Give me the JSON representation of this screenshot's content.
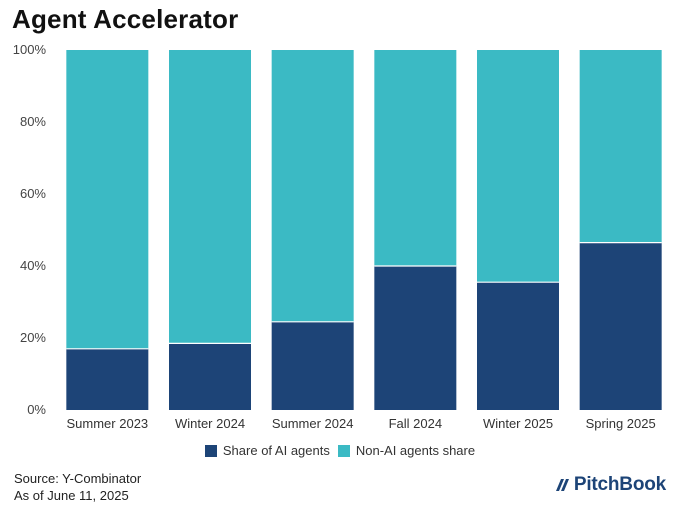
{
  "title": "Agent Accelerator",
  "colors": {
    "ai": "#1d4477",
    "non_ai": "#3bbac4",
    "gridline": "#cccccc"
  },
  "chart_data": {
    "type": "bar",
    "stacked": true,
    "categories": [
      "Summer 2023",
      "Winter 2024",
      "Summer 2024",
      "Fall 2024",
      "Winter 2025",
      "Spring 2025"
    ],
    "series": [
      {
        "name": "Share of AI agents",
        "values": [
          17,
          18.5,
          24.5,
          40,
          35.5,
          46.5
        ]
      },
      {
        "name": "Non-AI agents share",
        "values": [
          83,
          81.5,
          75.5,
          60,
          64.5,
          53.5
        ]
      }
    ],
    "yticks": [
      "0%",
      "20%",
      "40%",
      "60%",
      "80%",
      "100%"
    ],
    "ylim": [
      0,
      100
    ],
    "xlabel": "",
    "ylabel": ""
  },
  "legend": {
    "ai_label": "Share of AI agents",
    "non_ai_label": "Non-AI agents share"
  },
  "source": {
    "line1": "Source: Y-Combinator",
    "line2": "As of June 11, 2025"
  },
  "logo_text": "PitchBook"
}
